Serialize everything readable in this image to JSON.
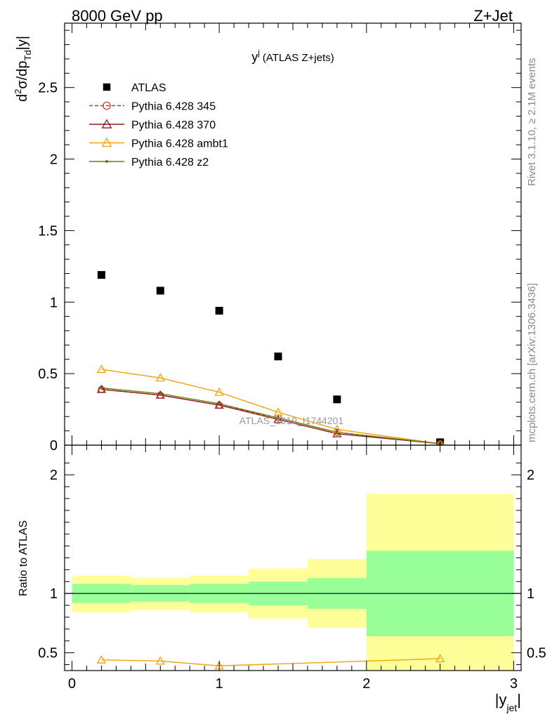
{
  "header": {
    "left": "8000 GeV pp",
    "right": "Z+Jet"
  },
  "side_labels": {
    "rivet": "Rivet 3.1.10, ≥ 2.1M events",
    "mcplots": "mcplots.cern.ch [arXiv:1306.3436]"
  },
  "chart_data": [
    {
      "type": "scatter",
      "panel": "main",
      "title_main": "y",
      "title_sup": "j",
      "title_rest": "(ATLAS Z+jets)",
      "ylabel": "d²σ/dp_Td|y|",
      "ylabel_parts": {
        "d1": "d",
        "sup": "2",
        "rest1": "σ/dp",
        "sub": "Td",
        "rest2": "|y|"
      },
      "watermark": "ATLAS_2019_I1744201",
      "xlim": [
        -0.05,
        3.05
      ],
      "ylim": [
        0,
        2.95
      ],
      "yticks": [
        0,
        0.5,
        1,
        1.5,
        2,
        2.5
      ],
      "ytick_labels": [
        "0",
        "0.5",
        "1",
        "1.5",
        "2",
        "2.5"
      ],
      "legend_position": "top-left",
      "series": [
        {
          "name": "ATLAS",
          "color": "#000000",
          "marker": "filled-square",
          "x": [
            0.2,
            0.6,
            1.0,
            1.4,
            1.8,
            2.5
          ],
          "y": [
            1.19,
            1.08,
            0.94,
            0.62,
            0.32,
            0.02
          ]
        },
        {
          "name": "Pythia 6.428 345",
          "color": "#c0392b",
          "marker": "open-circle",
          "dashed": true,
          "x": [
            0.2,
            0.6,
            1.0,
            1.4,
            1.8,
            2.5
          ],
          "y": [
            0.39,
            0.35,
            0.28,
            0.19,
            0.09,
            0.01
          ]
        },
        {
          "name": "Pythia 6.428 370",
          "color": "#8b1a1a",
          "marker": "open-triangle",
          "x": [
            0.2,
            0.6,
            1.0,
            1.4,
            1.8,
            2.5
          ],
          "y": [
            0.39,
            0.35,
            0.28,
            0.18,
            0.08,
            0.01
          ]
        },
        {
          "name": "Pythia 6.428 ambt1",
          "color": "#f0a30a",
          "marker": "open-triangle",
          "x": [
            0.2,
            0.6,
            1.0,
            1.4,
            1.8,
            2.5
          ],
          "y": [
            0.53,
            0.47,
            0.37,
            0.23,
            0.11,
            0.01
          ]
        },
        {
          "name": "Pythia 6.428 z2",
          "color": "#6b7a10",
          "marker": "small-dot",
          "x": [
            0.2,
            0.6,
            1.0,
            1.4,
            1.8,
            2.5
          ],
          "y": [
            0.4,
            0.36,
            0.29,
            0.19,
            0.09,
            0.01
          ]
        }
      ]
    },
    {
      "type": "line",
      "panel": "ratio",
      "ylabel": "Ratio to ATLAS",
      "xlabel": "|y_jet|",
      "xlabel_parts": {
        "main": "|y",
        "sub": "jet",
        "end": "|"
      },
      "xlim": [
        -0.05,
        3.05
      ],
      "ylim": [
        0.35,
        2.25
      ],
      "xticks": [
        0,
        1,
        2,
        3
      ],
      "xtick_labels": [
        "0",
        "1",
        "2",
        "3"
      ],
      "yticks": [
        0.5,
        1,
        2
      ],
      "ytick_labels": [
        "0.5",
        "1",
        "2"
      ],
      "reference_line": 1,
      "bands": [
        {
          "x0": 0.0,
          "x1": 0.4,
          "outer": [
            0.84,
            1.15
          ],
          "inner": [
            0.92,
            1.08
          ]
        },
        {
          "x0": 0.4,
          "x1": 0.8,
          "outer": [
            0.86,
            1.13
          ],
          "inner": [
            0.93,
            1.07
          ]
        },
        {
          "x0": 0.8,
          "x1": 1.2,
          "outer": [
            0.84,
            1.15
          ],
          "inner": [
            0.92,
            1.08
          ]
        },
        {
          "x0": 1.2,
          "x1": 1.6,
          "outer": [
            0.79,
            1.21
          ],
          "inner": [
            0.9,
            1.1
          ]
        },
        {
          "x0": 1.6,
          "x1": 2.0,
          "outer": [
            0.71,
            1.29
          ],
          "inner": [
            0.87,
            1.13
          ]
        },
        {
          "x0": 2.0,
          "x1": 3.0,
          "outer": [
            0.35,
            1.84
          ],
          "inner": [
            0.64,
            1.36
          ]
        }
      ],
      "band_colors": {
        "outer": "#ffff99",
        "inner": "#99ff99"
      },
      "series": [
        {
          "name": "Pythia 6.428 ambt1",
          "color": "#f0a30a",
          "marker": "open-triangle",
          "x": [
            0.2,
            0.6,
            1.0,
            2.5
          ],
          "y": [
            0.44,
            0.43,
            0.39,
            0.45
          ]
        }
      ]
    }
  ]
}
